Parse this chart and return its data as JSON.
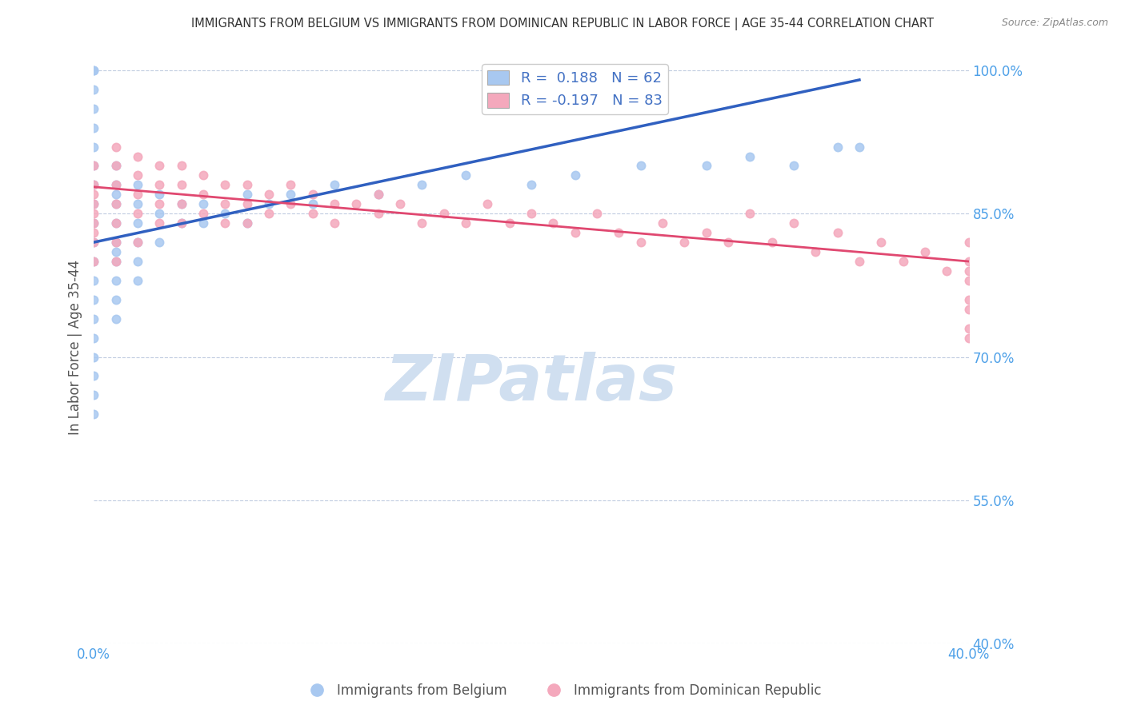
{
  "title": "IMMIGRANTS FROM BELGIUM VS IMMIGRANTS FROM DOMINICAN REPUBLIC IN LABOR FORCE | AGE 35-44 CORRELATION CHART",
  "source": "Source: ZipAtlas.com",
  "ylabel": "In Labor Force | Age 35-44",
  "xlabel_belgium": "Immigrants from Belgium",
  "xlabel_dr": "Immigrants from Dominican Republic",
  "xmin": 0.0,
  "xmax": 0.04,
  "ymin": 0.4,
  "ymax": 1.02,
  "yticks": [
    0.4,
    0.55,
    0.7,
    0.85,
    1.0
  ],
  "ytick_labels": [
    "40.0%",
    "55.0%",
    "70.0%",
    "85.0%",
    "100.0%"
  ],
  "R_belgium": 0.188,
  "N_belgium": 62,
  "R_dr": -0.197,
  "N_dr": 83,
  "color_belgium": "#a8c8f0",
  "color_dr": "#f4a8bc",
  "line_color_belgium": "#3060c0",
  "line_color_dr": "#e04870",
  "watermark": "ZIPatlas",
  "watermark_color": "#d0dff0",
  "belgium_x": [
    0.0,
    0.0,
    0.0,
    0.0,
    0.0,
    0.0,
    0.0,
    0.0,
    0.0,
    0.0,
    0.0,
    0.0,
    0.0,
    0.0,
    0.0,
    0.0,
    0.0,
    0.0,
    0.0,
    0.0,
    0.001,
    0.001,
    0.001,
    0.001,
    0.001,
    0.001,
    0.001,
    0.001,
    0.001,
    0.001,
    0.001,
    0.002,
    0.002,
    0.002,
    0.002,
    0.002,
    0.002,
    0.003,
    0.003,
    0.003,
    0.004,
    0.004,
    0.005,
    0.005,
    0.006,
    0.007,
    0.007,
    0.008,
    0.009,
    0.01,
    0.011,
    0.013,
    0.015,
    0.017,
    0.02,
    0.022,
    0.025,
    0.028,
    0.03,
    0.032,
    0.034,
    0.035
  ],
  "belgium_y": [
    1.0,
    1.0,
    0.98,
    0.96,
    0.94,
    0.92,
    0.9,
    0.88,
    0.86,
    0.84,
    0.82,
    0.8,
    0.78,
    0.76,
    0.74,
    0.72,
    0.7,
    0.68,
    0.66,
    0.64,
    0.9,
    0.88,
    0.87,
    0.86,
    0.84,
    0.82,
    0.81,
    0.8,
    0.78,
    0.76,
    0.74,
    0.88,
    0.86,
    0.84,
    0.82,
    0.8,
    0.78,
    0.87,
    0.85,
    0.82,
    0.86,
    0.84,
    0.86,
    0.84,
    0.85,
    0.87,
    0.84,
    0.86,
    0.87,
    0.86,
    0.88,
    0.87,
    0.88,
    0.89,
    0.88,
    0.89,
    0.9,
    0.9,
    0.91,
    0.9,
    0.92,
    0.92
  ],
  "dr_x": [
    0.0,
    0.0,
    0.0,
    0.0,
    0.0,
    0.0,
    0.0,
    0.0,
    0.0,
    0.001,
    0.001,
    0.001,
    0.001,
    0.001,
    0.001,
    0.001,
    0.002,
    0.002,
    0.002,
    0.002,
    0.002,
    0.003,
    0.003,
    0.003,
    0.003,
    0.004,
    0.004,
    0.004,
    0.004,
    0.005,
    0.005,
    0.005,
    0.006,
    0.006,
    0.006,
    0.007,
    0.007,
    0.007,
    0.008,
    0.008,
    0.009,
    0.009,
    0.01,
    0.01,
    0.011,
    0.011,
    0.012,
    0.013,
    0.013,
    0.014,
    0.015,
    0.016,
    0.017,
    0.018,
    0.019,
    0.02,
    0.021,
    0.022,
    0.023,
    0.024,
    0.025,
    0.026,
    0.027,
    0.028,
    0.029,
    0.03,
    0.031,
    0.032,
    0.033,
    0.034,
    0.035,
    0.036,
    0.037,
    0.038,
    0.039,
    0.04,
    0.04,
    0.04,
    0.04,
    0.04,
    0.04,
    0.04,
    0.04
  ],
  "dr_y": [
    0.9,
    0.88,
    0.87,
    0.86,
    0.85,
    0.84,
    0.83,
    0.82,
    0.8,
    0.92,
    0.9,
    0.88,
    0.86,
    0.84,
    0.82,
    0.8,
    0.91,
    0.89,
    0.87,
    0.85,
    0.82,
    0.9,
    0.88,
    0.86,
    0.84,
    0.9,
    0.88,
    0.86,
    0.84,
    0.89,
    0.87,
    0.85,
    0.88,
    0.86,
    0.84,
    0.88,
    0.86,
    0.84,
    0.87,
    0.85,
    0.88,
    0.86,
    0.87,
    0.85,
    0.86,
    0.84,
    0.86,
    0.87,
    0.85,
    0.86,
    0.84,
    0.85,
    0.84,
    0.86,
    0.84,
    0.85,
    0.84,
    0.83,
    0.85,
    0.83,
    0.82,
    0.84,
    0.82,
    0.83,
    0.82,
    0.85,
    0.82,
    0.84,
    0.81,
    0.83,
    0.8,
    0.82,
    0.8,
    0.81,
    0.79,
    0.82,
    0.8,
    0.79,
    0.76,
    0.78,
    0.75,
    0.73,
    0.72
  ],
  "bel_trendline_x": [
    0.0,
    0.035
  ],
  "bel_trendline_y": [
    0.82,
    0.99
  ],
  "dr_trendline_x": [
    0.0,
    0.04
  ],
  "dr_trendline_y": [
    0.878,
    0.8
  ]
}
